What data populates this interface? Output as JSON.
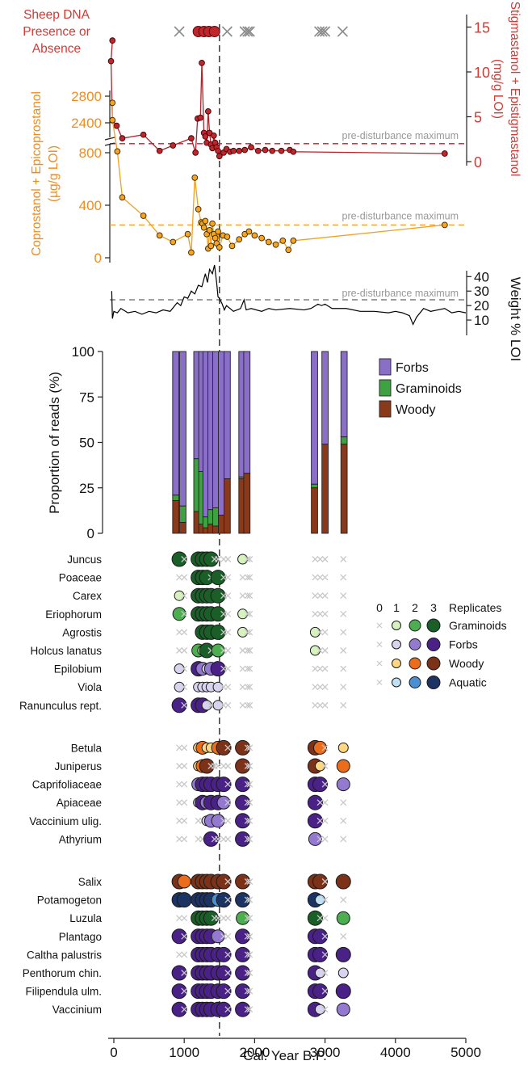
{
  "chart_data": {
    "type": "composite",
    "x_axis": {
      "label": "Cal. Year B.P.",
      "ticks": [
        0,
        1000,
        2000,
        3000,
        4000,
        5000
      ],
      "range": [
        -80,
        5000
      ]
    },
    "threshold_line": {
      "x": 1500,
      "style": "dashed"
    },
    "sheep_dna": {
      "label_lines": [
        "Sheep DNA",
        "Presence or",
        "Absence"
      ],
      "present_x": [
        1200,
        1280,
        1350,
        1430
      ],
      "absent_x": [
        930,
        1610,
        1860,
        1900,
        1930,
        2920,
        2960,
        3000,
        3250
      ]
    },
    "stigmastanol": {
      "axis_label_lines": [
        "Stigmastanol + Epistigmastanol",
        "(mg/g LOI)"
      ],
      "ticks": [
        0,
        5,
        10,
        15
      ],
      "reference_value": 2,
      "reference_label": "pre-disturbance maximum",
      "points": [
        [
          -20,
          13.5
        ],
        [
          -40,
          11.2
        ],
        [
          -20,
          4.6
        ],
        [
          40,
          4.0
        ],
        [
          120,
          2.6
        ],
        [
          420,
          3.0
        ],
        [
          650,
          1.2
        ],
        [
          840,
          1.8
        ],
        [
          1100,
          2.6
        ],
        [
          1160,
          1.0
        ],
        [
          1190,
          4.8
        ],
        [
          1230,
          4.9
        ],
        [
          1250,
          11.0
        ],
        [
          1280,
          3.2
        ],
        [
          1300,
          2.8
        ],
        [
          1320,
          2.1
        ],
        [
          1340,
          5.6
        ],
        [
          1360,
          3.2
        ],
        [
          1380,
          1.9
        ],
        [
          1400,
          1.5
        ],
        [
          1420,
          2.9
        ],
        [
          1440,
          2.1
        ],
        [
          1460,
          1.6
        ],
        [
          1480,
          1.2
        ],
        [
          1500,
          0.6
        ],
        [
          1560,
          1.0
        ],
        [
          1600,
          1.4
        ],
        [
          1650,
          1.1
        ],
        [
          1700,
          1.2
        ],
        [
          1780,
          1.2
        ],
        [
          1860,
          1.3
        ],
        [
          1950,
          1.6
        ],
        [
          2050,
          1.2
        ],
        [
          2150,
          1.3
        ],
        [
          2250,
          1.2
        ],
        [
          2380,
          1.2
        ],
        [
          2500,
          1.3
        ],
        [
          2550,
          1.1
        ],
        [
          4700,
          0.9
        ]
      ]
    },
    "coprostanol": {
      "axis_label_lines": [
        "Coprostanol + Epicoprostanol",
        "(µg/g LOI)"
      ],
      "ticks_lower": [
        0,
        400,
        800
      ],
      "ticks_upper": [
        2400,
        2800
      ],
      "reference_value": 250,
      "reference_label": "pre-disturbance maximum",
      "upper_points": [
        [
          -20,
          2700
        ],
        [
          -20,
          2440
        ]
      ],
      "points": [
        [
          50,
          810
        ],
        [
          120,
          460
        ],
        [
          420,
          320
        ],
        [
          650,
          170
        ],
        [
          840,
          120
        ],
        [
          1050,
          180
        ],
        [
          1100,
          40
        ],
        [
          1150,
          610
        ],
        [
          1200,
          370
        ],
        [
          1240,
          270
        ],
        [
          1260,
          260
        ],
        [
          1280,
          230
        ],
        [
          1300,
          280
        ],
        [
          1320,
          180
        ],
        [
          1340,
          70
        ],
        [
          1360,
          210
        ],
        [
          1380,
          90
        ],
        [
          1400,
          260
        ],
        [
          1420,
          180
        ],
        [
          1440,
          150
        ],
        [
          1460,
          110
        ],
        [
          1480,
          200
        ],
        [
          1500,
          80
        ],
        [
          1550,
          170
        ],
        [
          1610,
          160
        ],
        [
          1680,
          90
        ],
        [
          1780,
          140
        ],
        [
          1860,
          180
        ],
        [
          1920,
          200
        ],
        [
          2000,
          170
        ],
        [
          2100,
          150
        ],
        [
          2200,
          120
        ],
        [
          2300,
          100
        ],
        [
          2400,
          130
        ],
        [
          2480,
          60
        ],
        [
          2550,
          130
        ],
        [
          4700,
          250
        ]
      ]
    },
    "loi": {
      "axis_label": "Weight % LOI",
      "ticks": [
        10,
        20,
        30,
        40
      ],
      "reference_value": 24,
      "reference_label": "pre-disturbance maximum",
      "points": [
        [
          -30,
          30
        ],
        [
          -20,
          11
        ],
        [
          0,
          16
        ],
        [
          50,
          15
        ],
        [
          100,
          18
        ],
        [
          200,
          15
        ],
        [
          300,
          16
        ],
        [
          400,
          14
        ],
        [
          500,
          16
        ],
        [
          600,
          15
        ],
        [
          700,
          17
        ],
        [
          800,
          16
        ],
        [
          900,
          22
        ],
        [
          950,
          20
        ],
        [
          1000,
          26
        ],
        [
          1050,
          25
        ],
        [
          1100,
          30
        ],
        [
          1150,
          28
        ],
        [
          1200,
          34
        ],
        [
          1250,
          33
        ],
        [
          1300,
          42
        ],
        [
          1330,
          36
        ],
        [
          1360,
          45
        ],
        [
          1400,
          42
        ],
        [
          1430,
          48
        ],
        [
          1460,
          36
        ],
        [
          1480,
          26
        ],
        [
          1500,
          25
        ],
        [
          1540,
          21
        ],
        [
          1570,
          17
        ],
        [
          1600,
          20
        ],
        [
          1700,
          16
        ],
        [
          1800,
          18
        ],
        [
          1850,
          24
        ],
        [
          1880,
          17
        ],
        [
          1950,
          18
        ],
        [
          2100,
          16
        ],
        [
          2200,
          18
        ],
        [
          2300,
          17
        ],
        [
          2500,
          18
        ],
        [
          2700,
          17
        ],
        [
          2800,
          18
        ],
        [
          2900,
          21
        ],
        [
          2950,
          20
        ],
        [
          3000,
          21
        ],
        [
          3100,
          18
        ],
        [
          3300,
          18
        ],
        [
          3500,
          16
        ],
        [
          3700,
          16
        ],
        [
          3900,
          15
        ],
        [
          4000,
          16
        ],
        [
          4100,
          15
        ],
        [
          4200,
          13
        ],
        [
          4250,
          7
        ],
        [
          4300,
          12
        ],
        [
          4400,
          18
        ],
        [
          4500,
          16
        ],
        [
          4600,
          17
        ],
        [
          4700,
          18
        ],
        [
          4800,
          15
        ],
        [
          4900,
          16
        ],
        [
          5000,
          15
        ]
      ]
    },
    "reads": {
      "ylabel": "Proportion of reads (%)",
      "yticks": [
        0,
        25,
        50,
        75,
        100
      ],
      "legend": [
        {
          "name": "Forbs",
          "color": "#8a6fc8"
        },
        {
          "name": "Graminoids",
          "color": "#3ea142"
        },
        {
          "name": "Woody",
          "color": "#8a3a1b"
        }
      ],
      "bars": [
        {
          "x": 880,
          "woody": 18,
          "graminoids": 3
        },
        {
          "x": 980,
          "woody": 6,
          "graminoids": 9
        },
        {
          "x": 1180,
          "woody": 12,
          "graminoids": 29
        },
        {
          "x": 1250,
          "woody": 5,
          "graminoids": 29
        },
        {
          "x": 1310,
          "woody": 3,
          "graminoids": 6
        },
        {
          "x": 1380,
          "woody": 5,
          "graminoids": 8
        },
        {
          "x": 1450,
          "woody": 4,
          "graminoids": 10
        },
        {
          "x": 1530,
          "woody": 10,
          "graminoids": 0
        },
        {
          "x": 1610,
          "woody": 30,
          "graminoids": 0
        },
        {
          "x": 1820,
          "woody": 30,
          "graminoids": 1
        },
        {
          "x": 1890,
          "woody": 33,
          "graminoids": 0
        },
        {
          "x": 2850,
          "woody": 25,
          "graminoids": 2
        },
        {
          "x": 3000,
          "woody": 49,
          "graminoids": 0
        },
        {
          "x": 3270,
          "woody": 49,
          "graminoids": 4
        }
      ]
    },
    "replicates_legend": {
      "title": "Replicates",
      "levels": [
        "0",
        "1",
        "2",
        "3"
      ],
      "groups": [
        {
          "name": "Graminoids",
          "colors": [
            "#d6f2be",
            "#4cae4f",
            "#1a5e28"
          ]
        },
        {
          "name": "Forbs",
          "colors": [
            "#d8d3ee",
            "#9479d0",
            "#4a2187"
          ]
        },
        {
          "name": "Woody",
          "colors": [
            "#ffd782",
            "#eb6d1c",
            "#7b3218"
          ]
        },
        {
          "name": "Aquatic",
          "colors": [
            "#bfe0f5",
            "#4a8fd2",
            "#1c3464"
          ]
        }
      ]
    },
    "sample_x": [
      930,
      1000,
      1200,
      1260,
      1320,
      1380,
      1430,
      1480,
      1560,
      1620,
      1830,
      1900,
      1930,
      2860,
      2930,
      3000,
      3260
    ],
    "taxa": [
      {
        "name": "Juncus",
        "group": "Graminoids",
        "reps": [
          3,
          0,
          3,
          3,
          3,
          3,
          0,
          0,
          0,
          0,
          1,
          0,
          0,
          0,
          0,
          0,
          0
        ]
      },
      {
        "name": "Poaceae",
        "group": "Graminoids",
        "reps": [
          0,
          0,
          3,
          3,
          3,
          0,
          0,
          3,
          0,
          0,
          0,
          0,
          0,
          0,
          0,
          0,
          0
        ]
      },
      {
        "name": "Carex",
        "group": "Graminoids",
        "reps": [
          1,
          0,
          3,
          3,
          3,
          3,
          0,
          3,
          0,
          0,
          0,
          0,
          0,
          0,
          0,
          0,
          0
        ]
      },
      {
        "name": "Eriophorum",
        "group": "Graminoids",
        "reps": [
          2,
          0,
          3,
          3,
          3,
          3,
          0,
          3,
          0,
          0,
          1,
          0,
          0,
          0,
          0,
          0,
          0
        ]
      },
      {
        "name": "Agrostis",
        "group": "Graminoids",
        "reps": [
          0,
          0,
          0,
          3,
          3,
          3,
          0,
          3,
          0,
          0,
          1,
          0,
          0,
          1,
          0,
          0,
          0
        ]
      },
      {
        "name": "Holcus lanatus",
        "group": "Graminoids",
        "reps": [
          0,
          0,
          2,
          1,
          3,
          0,
          0,
          2,
          0,
          0,
          0,
          0,
          0,
          1,
          0,
          0,
          0
        ]
      },
      {
        "name": "Epilobium",
        "group": "Forbs",
        "reps": [
          1,
          0,
          3,
          2,
          1,
          2,
          0,
          3,
          0,
          0,
          0,
          0,
          0,
          0,
          0,
          0,
          0
        ]
      },
      {
        "name": "Viola",
        "group": "Forbs",
        "reps": [
          1,
          0,
          1,
          1,
          1,
          1,
          0,
          1,
          0,
          0,
          0,
          0,
          0,
          0,
          0,
          0,
          0
        ]
      },
      {
        "name": "Ranunculus rept.",
        "group": "Forbs",
        "reps": [
          3,
          0,
          3,
          3,
          1,
          0,
          0,
          1,
          0,
          0,
          0,
          0,
          0,
          0,
          0,
          0,
          0
        ]
      },
      {
        "name": "Betula",
        "group": "Woody",
        "reps": [
          0,
          0,
          1,
          2,
          1,
          1,
          0,
          2,
          3,
          0,
          3,
          0,
          0,
          3,
          2,
          0,
          1
        ]
      },
      {
        "name": "Juniperus",
        "group": "Woody",
        "reps": [
          0,
          0,
          1,
          2,
          3,
          0,
          0,
          0,
          0,
          0,
          3,
          0,
          0,
          3,
          1,
          0,
          2
        ]
      },
      {
        "name": "Caprifoliaceae",
        "group": "Forbs",
        "reps": [
          0,
          0,
          2,
          3,
          3,
          3,
          0,
          3,
          3,
          0,
          3,
          0,
          0,
          3,
          3,
          0,
          2
        ]
      },
      {
        "name": "Apiaceae",
        "group": "Forbs",
        "reps": [
          0,
          0,
          1,
          3,
          2,
          3,
          0,
          3,
          2,
          0,
          3,
          0,
          0,
          3,
          0,
          0,
          0
        ]
      },
      {
        "name": "Vaccinium ulig.",
        "group": "Forbs",
        "reps": [
          0,
          0,
          0,
          0,
          1,
          2,
          0,
          2,
          0,
          0,
          3,
          0,
          0,
          3,
          0,
          0,
          0
        ]
      },
      {
        "name": "Athyrium",
        "group": "Forbs",
        "reps": [
          0,
          0,
          0,
          0,
          0,
          3,
          0,
          0,
          0,
          0,
          3,
          0,
          0,
          2,
          0,
          0,
          0
        ]
      },
      {
        "name": "Salix",
        "group": "Woody",
        "reps": [
          3,
          2,
          3,
          3,
          3,
          3,
          0,
          3,
          3,
          0,
          3,
          0,
          0,
          3,
          3,
          0,
          3
        ]
      },
      {
        "name": "Potamogeton",
        "group": "Aquatic",
        "reps": [
          3,
          3,
          3,
          3,
          3,
          3,
          0,
          2,
          3,
          0,
          3,
          0,
          0,
          3,
          1,
          0,
          0
        ]
      },
      {
        "name": "Luzula",
        "group": "Graminoids",
        "reps": [
          0,
          0,
          3,
          3,
          3,
          3,
          0,
          0,
          0,
          0,
          2,
          0,
          0,
          3,
          0,
          0,
          2
        ]
      },
      {
        "name": "Plantago",
        "group": "Forbs",
        "reps": [
          3,
          0,
          3,
          3,
          3,
          3,
          0,
          2,
          0,
          0,
          3,
          0,
          0,
          3,
          3,
          0,
          0
        ]
      },
      {
        "name": "Caltha palustris",
        "group": "Forbs",
        "reps": [
          0,
          0,
          3,
          3,
          3,
          3,
          0,
          3,
          3,
          0,
          3,
          0,
          0,
          3,
          3,
          0,
          3
        ]
      },
      {
        "name": "Penthorum chin.",
        "group": "Forbs",
        "reps": [
          3,
          0,
          3,
          3,
          3,
          3,
          0,
          3,
          3,
          0,
          3,
          0,
          0,
          3,
          1,
          0,
          1
        ]
      },
      {
        "name": "Filipendula ulm.",
        "group": "Forbs",
        "reps": [
          3,
          0,
          3,
          3,
          3,
          3,
          0,
          3,
          3,
          0,
          3,
          0,
          0,
          3,
          3,
          0,
          3
        ]
      },
      {
        "name": "Vaccinium",
        "group": "Forbs",
        "reps": [
          3,
          0,
          3,
          3,
          3,
          3,
          0,
          3,
          3,
          0,
          3,
          0,
          0,
          3,
          1,
          0,
          2
        ]
      }
    ],
    "colors": {
      "sheep_red": "#c0262c",
      "stig_line": "#b3232b",
      "copro_orange": "#f0a022",
      "copro_fill": "#f7a51c",
      "label_red": "#d13a35",
      "label_orange": "#f08c1e",
      "absent_gray": "#8c8c8c",
      "ref_gray": "#999999"
    }
  }
}
